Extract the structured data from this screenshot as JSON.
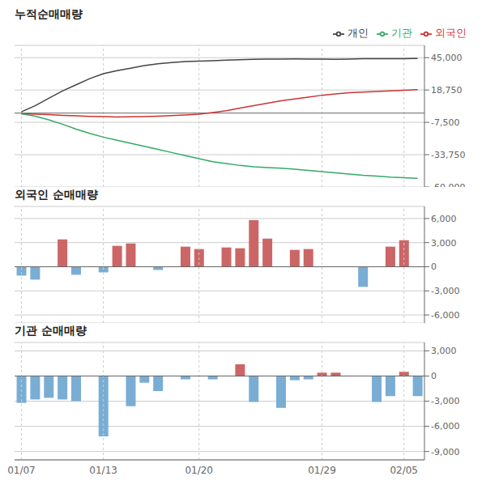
{
  "chart_data": [
    {
      "type": "line",
      "title": "누적순매매량",
      "categories": [
        "01/07",
        null,
        null,
        null,
        null,
        null,
        "01/13",
        null,
        null,
        null,
        null,
        null,
        null,
        "01/20",
        null,
        null,
        null,
        null,
        null,
        null,
        null,
        null,
        "01/29",
        null,
        null,
        null,
        null,
        null,
        "02/05",
        null
      ],
      "series": [
        {
          "name": "외국인",
          "color": "#cc3333",
          "values": [
            -500,
            -800,
            -1200,
            -1800,
            -2200,
            -2600,
            -2900,
            -3100,
            -3000,
            -2800,
            -2500,
            -2000,
            -1500,
            -800,
            500,
            2000,
            4000,
            6000,
            8000,
            10000,
            11500,
            13000,
            14500,
            15500,
            16500,
            17000,
            17500,
            18000,
            18500,
            19000
          ]
        },
        {
          "name": "기관",
          "color": "#33aa66",
          "values": [
            -500,
            -2500,
            -5500,
            -9000,
            -13000,
            -16500,
            -19500,
            -22000,
            -24500,
            -27000,
            -29500,
            -32000,
            -34500,
            -37000,
            -39500,
            -41000,
            -42500,
            -43500,
            -44200,
            -44800,
            -45500,
            -46500,
            -47500,
            -48500,
            -49500,
            -50500,
            -51200,
            -52000,
            -52500,
            -53000
          ]
        },
        {
          "name": "개인",
          "color": "#444444",
          "values": [
            1000,
            6000,
            12000,
            18000,
            23000,
            28000,
            32000,
            34500,
            36500,
            38500,
            40000,
            41000,
            41800,
            42200,
            42500,
            43000,
            43300,
            43600,
            43800,
            43900,
            44000,
            43900,
            43800,
            43700,
            43900,
            44100,
            44200,
            44100,
            44200,
            44300
          ]
        }
      ],
      "ylim": [
        -60000,
        55000
      ],
      "yticks": [
        {
          "value": 45000,
          "label": "45,000"
        },
        {
          "value": 18750,
          "label": "18,750"
        },
        {
          "value": -7500,
          "label": "-7,500"
        },
        {
          "value": -33750,
          "label": "-33,750"
        },
        {
          "value": -60000,
          "label": "-60,000"
        }
      ],
      "grid": true,
      "legend": "top",
      "tick_labels": "y"
    },
    {
      "type": "bar",
      "title": "외국인 순매매량",
      "categories": [
        "01/07",
        null,
        null,
        null,
        null,
        null,
        "01/13",
        null,
        null,
        null,
        null,
        null,
        null,
        "01/20",
        null,
        null,
        null,
        null,
        null,
        null,
        null,
        null,
        "01/29",
        null,
        null,
        null,
        null,
        null,
        "02/05",
        null
      ],
      "values": [
        -1100,
        -1600,
        0,
        3400,
        -1000,
        0,
        -700,
        2600,
        2900,
        0,
        -400,
        0,
        2500,
        2200,
        0,
        2400,
        2300,
        5800,
        3500,
        0,
        2100,
        2200,
        0,
        0,
        0,
        -2500,
        0,
        2500,
        3300,
        0
      ],
      "colors": [
        "#7aadd4",
        "#7aadd4",
        "#7aadd4",
        "#cc6666",
        "#7aadd4",
        "#7aadd4",
        "#7aadd4",
        "#cc6666",
        "#cc6666",
        "#7aadd4",
        "#7aadd4",
        "#7aadd4",
        "#cc6666",
        "#cc6666",
        "#7aadd4",
        "#cc6666",
        "#cc6666",
        "#cc6666",
        "#cc6666",
        "#7aadd4",
        "#cc6666",
        "#cc6666",
        "#7aadd4",
        "#7aadd4",
        "#7aadd4",
        "#7aadd4",
        "#7aadd4",
        "#cc6666",
        "#cc6666",
        "#7aadd4"
      ],
      "ylim": [
        -7000,
        7500
      ],
      "yticks": [
        {
          "value": 6000,
          "label": "6,000"
        },
        {
          "value": 3000,
          "label": "3,000"
        },
        0,
        {
          "value": -3000,
          "label": "-3,000"
        },
        {
          "value": -6000,
          "label": "-6,000"
        }
      ],
      "grid": true,
      "tick_labels": "y"
    },
    {
      "type": "bar",
      "title": "기관 순매매량",
      "categories": [
        "01/07",
        null,
        null,
        null,
        null,
        null,
        "01/13",
        null,
        null,
        null,
        null,
        null,
        null,
        "01/20",
        null,
        null,
        null,
        null,
        null,
        null,
        null,
        null,
        "01/29",
        null,
        null,
        null,
        null,
        null,
        "02/05",
        null
      ],
      "values": [
        -3200,
        -2800,
        -2600,
        -2800,
        -3000,
        0,
        -7200,
        0,
        -3600,
        -800,
        -1800,
        0,
        -400,
        0,
        -400,
        0,
        1400,
        -3100,
        0,
        -3800,
        -500,
        -400,
        400,
        400,
        0,
        0,
        -3100,
        -2400,
        500,
        -2400
      ],
      "colors": [
        "#7aadd4",
        "#7aadd4",
        "#7aadd4",
        "#7aadd4",
        "#7aadd4",
        "#7aadd4",
        "#7aadd4",
        "#7aadd4",
        "#7aadd4",
        "#7aadd4",
        "#7aadd4",
        "#7aadd4",
        "#7aadd4",
        "#7aadd4",
        "#7aadd4",
        "#7aadd4",
        "#cc6666",
        "#7aadd4",
        "#7aadd4",
        "#7aadd4",
        "#7aadd4",
        "#7aadd4",
        "#cc6666",
        "#cc6666",
        "#7aadd4",
        "#7aadd4",
        "#7aadd4",
        "#7aadd4",
        "#cc6666",
        "#7aadd4"
      ],
      "ylim": [
        -10000,
        4000
      ],
      "yticks": [
        {
          "value": 3000,
          "label": "3,000"
        },
        0,
        {
          "value": -3000,
          "label": "-3,000"
        },
        {
          "value": -6000,
          "label": "-6,000"
        },
        {
          "value": -9000,
          "label": "-9,000"
        }
      ],
      "grid": true
    }
  ]
}
